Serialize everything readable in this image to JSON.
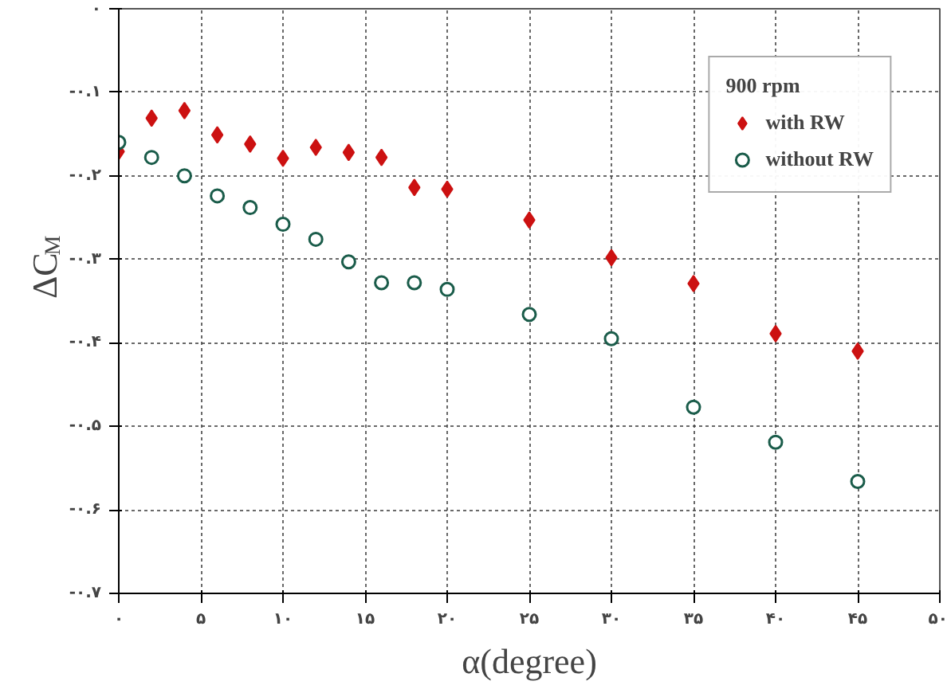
{
  "chart_data": {
    "type": "scatter",
    "xlabel": "α(degree)",
    "ylabel": "ΔC$_{M}$",
    "legend_title": "900 rpm",
    "x": [
      0,
      2,
      4,
      6,
      8,
      10,
      12,
      14,
      16,
      18,
      20,
      25,
      30,
      35,
      40,
      45
    ],
    "series": [
      {
        "name": "with RW",
        "color": "#cc1111",
        "marker": "diamond",
        "values": [
          -0.171,
          -0.131,
          -0.122,
          -0.151,
          -0.162,
          -0.179,
          -0.166,
          -0.172,
          -0.178,
          -0.214,
          -0.216,
          -0.253,
          -0.298,
          -0.329,
          -0.389,
          -0.41
        ]
      },
      {
        "name": "without RW",
        "color": "#1a5c4a",
        "marker": "circle",
        "values": [
          -0.16,
          -0.178,
          -0.2,
          -0.224,
          -0.238,
          -0.258,
          -0.276,
          -0.303,
          -0.328,
          -0.328,
          -0.336,
          -0.366,
          -0.395,
          -0.477,
          -0.519,
          -0.566
        ]
      }
    ],
    "xlim": [
      0,
      50
    ],
    "ylim": [
      -0.7,
      0
    ],
    "xticks": [
      {
        "value": 0,
        "label": "۰"
      },
      {
        "value": 5,
        "label": "۵"
      },
      {
        "value": 10,
        "label": "۱۰"
      },
      {
        "value": 15,
        "label": "۱۵"
      },
      {
        "value": 20,
        "label": "۲۰"
      },
      {
        "value": 25,
        "label": "۲۵"
      },
      {
        "value": 30,
        "label": "۳۰"
      },
      {
        "value": 35,
        "label": "۳۵"
      },
      {
        "value": 40,
        "label": "۴۰"
      },
      {
        "value": 45,
        "label": "۴۵"
      },
      {
        "value": 50,
        "label": "۵۰"
      }
    ],
    "yticks": [
      {
        "value": 0,
        "label": "۰"
      },
      {
        "value": -0.1,
        "label": "-۰.۱"
      },
      {
        "value": -0.2,
        "label": "-۰.۲"
      },
      {
        "value": -0.3,
        "label": "-۰.۳"
      },
      {
        "value": -0.4,
        "label": "-۰.۴"
      },
      {
        "value": -0.5,
        "label": "-۰.۵"
      },
      {
        "value": -0.6,
        "label": "-۰.۶"
      },
      {
        "value": -0.7,
        "label": "-۰.۷"
      }
    ],
    "grid": true,
    "legend": "top right"
  }
}
